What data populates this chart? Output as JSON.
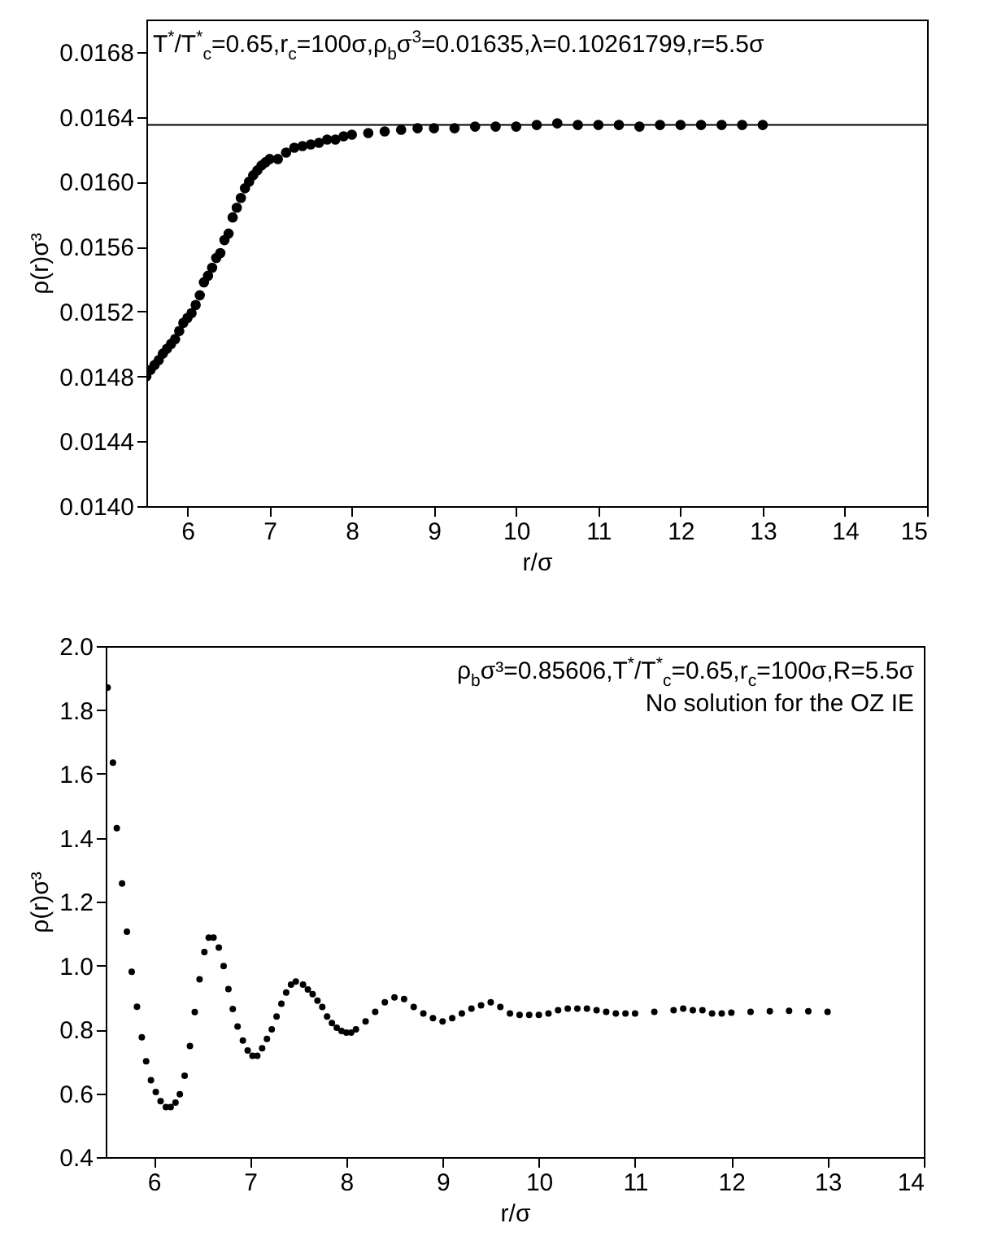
{
  "chart_data": [
    {
      "type": "scatter",
      "xlabel": "r/σ",
      "ylabel": "ρ(r)σ³",
      "marker": "circle",
      "annotations": [
        "T$^{*}$/T$^{*}$$_{c}$=0.65,r$_{c}$=100σ,ρ$_{b}$σ$^{3}$=0.01635,λ=0.10261799,r=5.5σ"
      ],
      "xlim": [
        5.5,
        15
      ],
      "xticks": [
        6,
        7,
        8,
        9,
        10,
        11,
        12,
        13,
        14,
        15
      ],
      "ylim": [
        0.014,
        0.017
      ],
      "yticks": [
        {
          "value": 0.014,
          "label": "0.0140"
        },
        0.0144,
        0.0148,
        0.0152,
        0.0156,
        {
          "value": 0.016,
          "label": "0.0160"
        },
        0.0164,
        0.0168
      ],
      "ref_lines": [
        {
          "axis": "y",
          "value": 0.01635,
          "color": "#000000"
        }
      ],
      "series": [
        {
          "color": "#000000",
          "x": [
            5.5,
            5.55,
            5.6,
            5.65,
            5.7,
            5.75,
            5.8,
            5.85,
            5.9,
            5.95,
            6.0,
            6.05,
            6.1,
            6.15,
            6.2,
            6.25,
            6.3,
            6.35,
            6.4,
            6.45,
            6.5,
            6.55,
            6.6,
            6.65,
            6.7,
            6.75,
            6.8,
            6.85,
            6.9,
            6.95,
            7.0,
            7.1,
            7.2,
            7.3,
            7.4,
            7.5,
            7.6,
            7.7,
            7.8,
            7.9,
            8.0,
            8.2,
            8.4,
            8.6,
            8.8,
            9.0,
            9.25,
            9.5,
            9.75,
            10.0,
            10.25,
            10.5,
            10.75,
            11.0,
            11.25,
            11.5,
            11.75,
            12.0,
            12.25,
            12.5,
            12.75,
            13.0
          ],
          "values": [
            0.0148,
            0.01484,
            0.01487,
            0.0149,
            0.01494,
            0.01497,
            0.015,
            0.01503,
            0.01508,
            0.01513,
            0.01516,
            0.01519,
            0.01524,
            0.0153,
            0.01538,
            0.01542,
            0.01547,
            0.01553,
            0.01556,
            0.01564,
            0.01568,
            0.01578,
            0.01584,
            0.0159,
            0.01596,
            0.016,
            0.01604,
            0.01607,
            0.0161,
            0.01612,
            0.01614,
            0.01614,
            0.01618,
            0.01621,
            0.01622,
            0.01623,
            0.01624,
            0.01626,
            0.01626,
            0.01628,
            0.01629,
            0.0163,
            0.01631,
            0.01632,
            0.01633,
            0.01633,
            0.01633,
            0.01634,
            0.01634,
            0.01634,
            0.01635,
            0.01636,
            0.01635,
            0.01635,
            0.01635,
            0.01634,
            0.01635,
            0.01635,
            0.01635,
            0.01635,
            0.01635,
            0.01635
          ]
        }
      ]
    },
    {
      "type": "scatter",
      "xlabel": "r/σ",
      "ylabel": "ρ(r)σ³",
      "marker": "circle",
      "annotations": [
        "ρ$_{b}$σ³=0.85606,T$^{*}$/T$^{*}$$_{c}$=0.65,r$_{c}$=100σ,R=5.5σ",
        "No solution for the OZ IE"
      ],
      "xlim": [
        5.5,
        14
      ],
      "xticks": [
        6,
        7,
        8,
        9,
        10,
        11,
        12,
        13,
        14
      ],
      "ylim": [
        0.4,
        2.0
      ],
      "yticks": [
        0.4,
        0.6,
        0.8,
        {
          "value": 1,
          "label": "1.0"
        },
        1.2,
        1.4,
        1.6,
        1.8,
        {
          "value": 2,
          "label": "2.0"
        }
      ],
      "series": [
        {
          "color": "#000000",
          "x": [
            5.52,
            5.575,
            5.615,
            5.67,
            5.72,
            5.77,
            5.825,
            5.875,
            5.92,
            5.97,
            6.02,
            6.07,
            6.125,
            6.175,
            6.225,
            6.27,
            6.32,
            6.375,
            6.425,
            6.475,
            6.525,
            6.57,
            6.62,
            6.675,
            6.725,
            6.775,
            6.82,
            6.87,
            6.925,
            6.975,
            7.025,
            7.075,
            7.125,
            7.175,
            7.225,
            7.275,
            7.325,
            7.375,
            7.425,
            7.475,
            7.55,
            7.6,
            7.65,
            7.7,
            7.75,
            7.8,
            7.85,
            7.9,
            7.95,
            8.0,
            8.05,
            8.1,
            8.2,
            8.3,
            8.4,
            8.5,
            8.6,
            8.7,
            8.8,
            8.9,
            9.0,
            9.1,
            9.2,
            9.3,
            9.4,
            9.5,
            9.6,
            9.7,
            9.8,
            9.9,
            10.0,
            10.1,
            10.2,
            10.3,
            10.4,
            10.5,
            10.6,
            10.7,
            10.8,
            10.9,
            11.0,
            11.2,
            11.4,
            11.5,
            11.6,
            11.7,
            11.8,
            11.9,
            12.0,
            12.2,
            12.4,
            12.6,
            12.8,
            13.0
          ],
          "values": [
            1.87,
            1.635,
            1.43,
            1.257,
            1.106,
            0.98,
            0.871,
            0.775,
            0.7,
            0.641,
            0.604,
            0.575,
            0.557,
            0.557,
            0.571,
            0.597,
            0.655,
            0.748,
            0.854,
            0.957,
            1.042,
            1.087,
            1.087,
            1.056,
            0.998,
            0.926,
            0.864,
            0.809,
            0.765,
            0.734,
            0.717,
            0.717,
            0.741,
            0.77,
            0.8,
            0.84,
            0.88,
            0.915,
            0.94,
            0.95,
            0.94,
            0.925,
            0.91,
            0.89,
            0.87,
            0.84,
            0.82,
            0.805,
            0.795,
            0.79,
            0.79,
            0.8,
            0.825,
            0.855,
            0.885,
            0.9,
            0.895,
            0.87,
            0.85,
            0.835,
            0.825,
            0.835,
            0.85,
            0.865,
            0.875,
            0.885,
            0.87,
            0.85,
            0.845,
            0.845,
            0.845,
            0.85,
            0.86,
            0.865,
            0.865,
            0.865,
            0.86,
            0.855,
            0.85,
            0.85,
            0.85,
            0.855,
            0.86,
            0.865,
            0.86,
            0.86,
            0.85,
            0.85,
            0.852,
            0.855,
            0.857,
            0.858,
            0.857,
            0.855
          ]
        }
      ]
    }
  ]
}
